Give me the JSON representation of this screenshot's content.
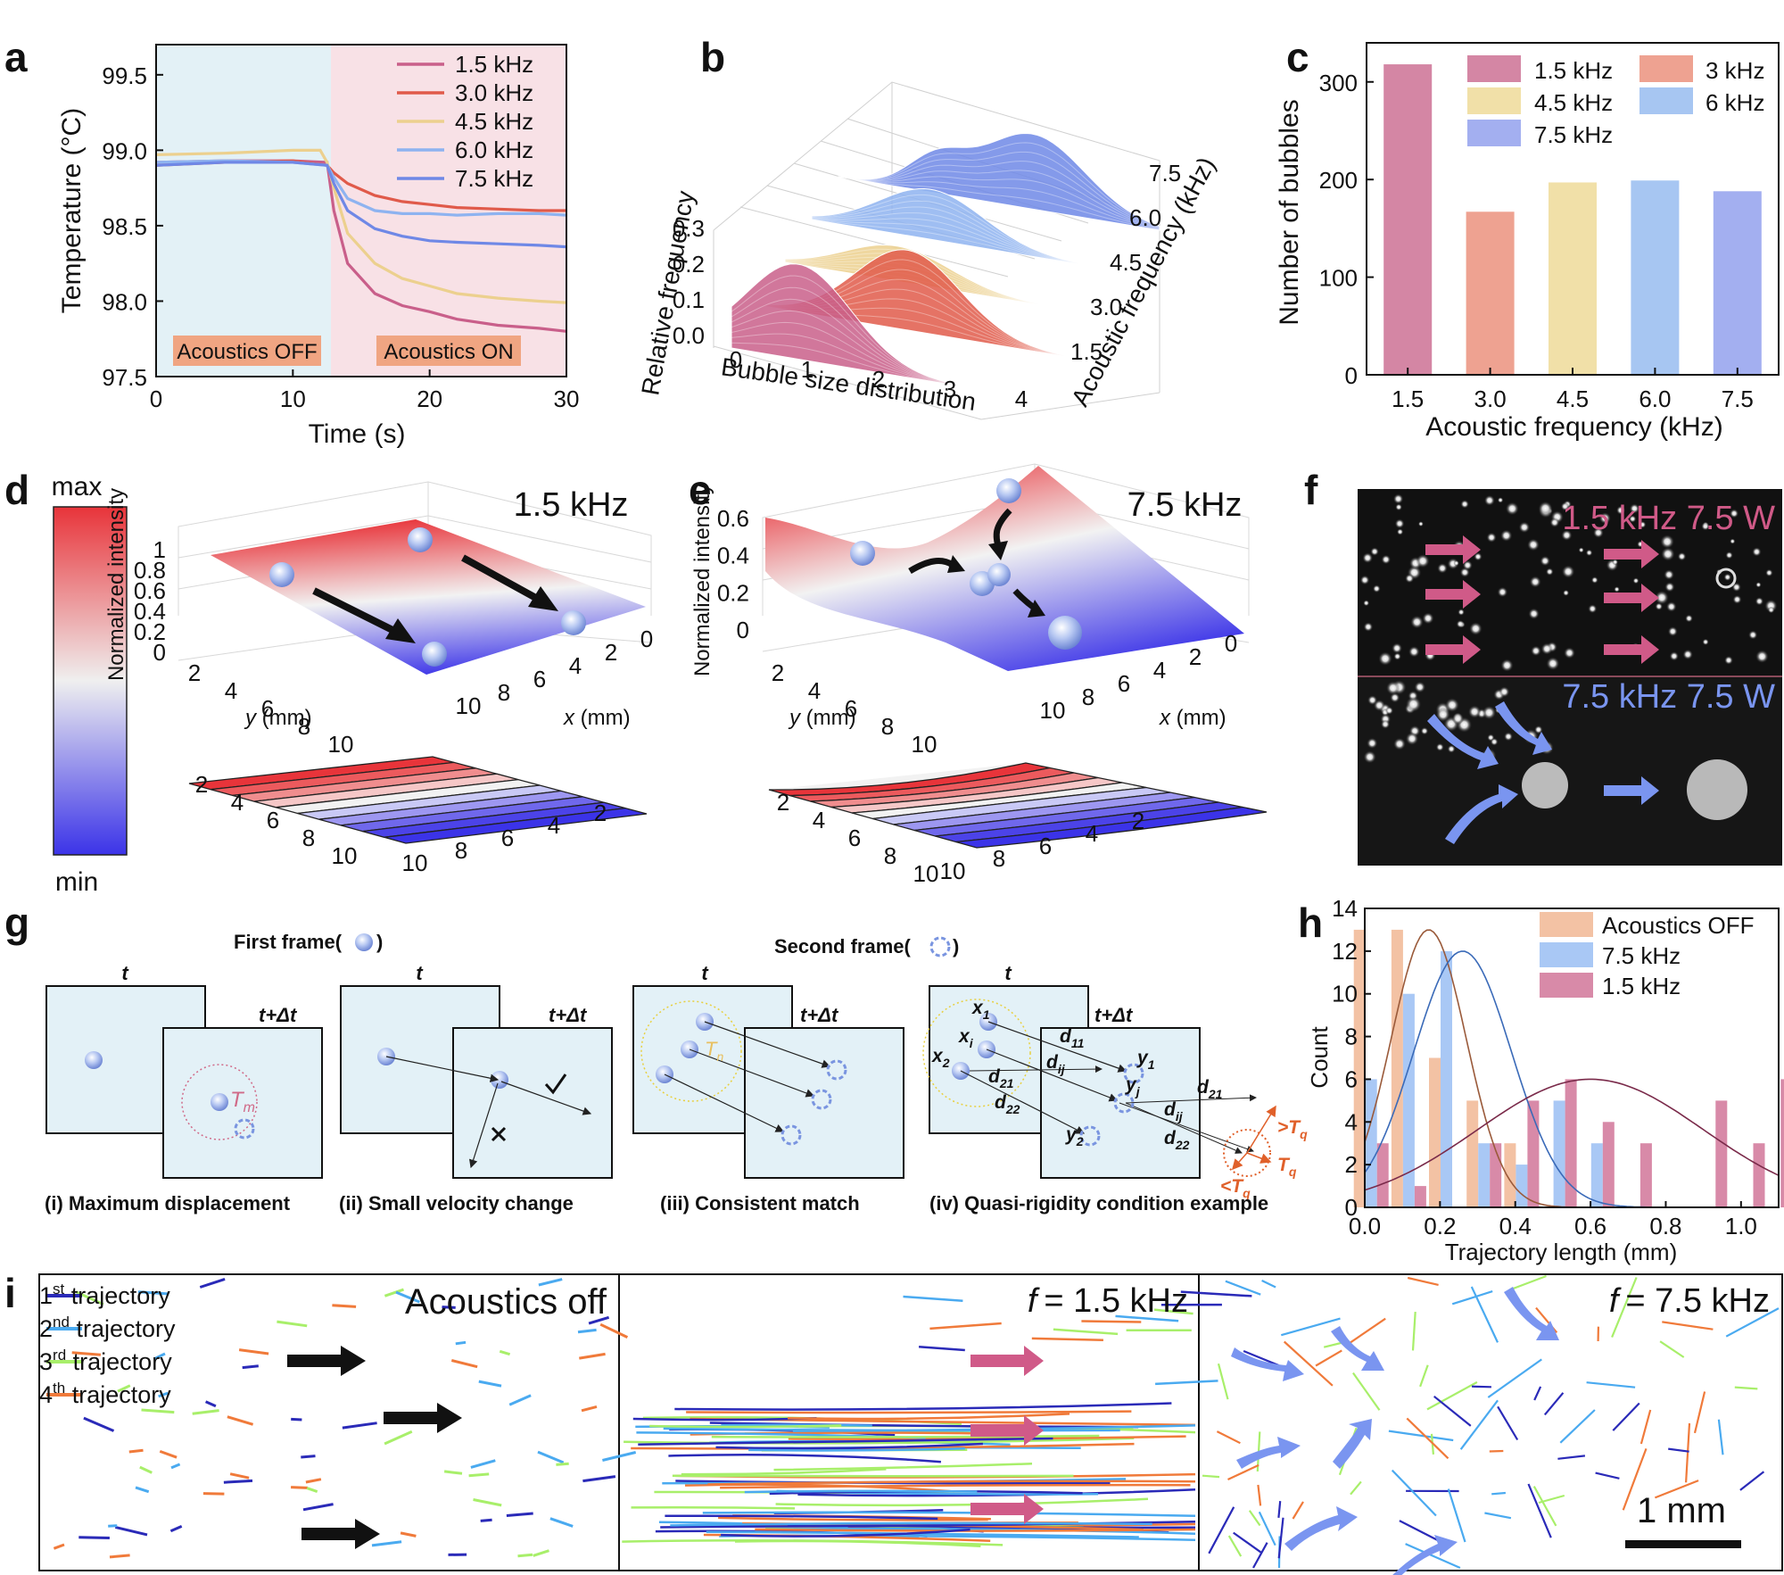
{
  "panels": {
    "a": {
      "label": "a",
      "region_off": "Acoustics OFF",
      "region_on": "Acoustics ON",
      "chart_data": {
        "type": "line",
        "xlabel": "Time (s)",
        "ylabel": "Temperature (°C)",
        "xlim": [
          0,
          30
        ],
        "ylim": [
          97.5,
          99.7
        ],
        "xticks": [
          "0",
          "10",
          "20",
          "30"
        ],
        "yticks": [
          "97.5",
          "98.0",
          "98.5",
          "99.0",
          "99.5"
        ],
        "series": [
          {
            "name": "1.5 kHz",
            "color": "#c95f8a",
            "x": [
              0,
              5,
              10,
              12.5,
              13,
              14,
              16,
              18,
              20,
              22,
              25,
              28,
              30
            ],
            "y": [
              98.92,
              98.93,
              98.93,
              98.92,
              98.6,
              98.25,
              98.05,
              97.97,
              97.93,
              97.88,
              97.84,
              97.82,
              97.8
            ]
          },
          {
            "name": "3.0 kHz",
            "color": "#e05a4a",
            "x": [
              0,
              5,
              10,
              12.5,
              13,
              14,
              16,
              18,
              20,
              22,
              25,
              28,
              30
            ],
            "y": [
              98.9,
              98.92,
              98.93,
              98.9,
              98.85,
              98.78,
              98.7,
              98.66,
              98.64,
              98.62,
              98.61,
              98.6,
              98.6
            ]
          },
          {
            "name": "4.5 kHz",
            "color": "#ecd08e",
            "x": [
              0,
              5,
              10,
              12,
              12.5,
              13,
              14,
              16,
              18,
              20,
              22,
              25,
              28,
              30
            ],
            "y": [
              98.97,
              98.98,
              99.0,
              99.0,
              98.92,
              98.75,
              98.45,
              98.25,
              98.15,
              98.1,
              98.05,
              98.02,
              98.0,
              97.99
            ]
          },
          {
            "name": "6.0 kHz",
            "color": "#8eb3f0",
            "x": [
              0,
              5,
              10,
              12.5,
              13,
              14,
              16,
              18,
              20,
              22,
              25,
              28,
              30
            ],
            "y": [
              98.92,
              98.93,
              98.92,
              98.9,
              98.82,
              98.68,
              98.6,
              98.58,
              98.58,
              98.57,
              98.58,
              98.58,
              98.57
            ]
          },
          {
            "name": "7.5 kHz",
            "color": "#6f88e6",
            "x": [
              0,
              5,
              10,
              12.5,
              13,
              14,
              16,
              18,
              20,
              22,
              25,
              28,
              30
            ],
            "y": [
              98.9,
              98.92,
              98.92,
              98.9,
              98.78,
              98.6,
              98.48,
              98.43,
              98.4,
              98.39,
              98.38,
              98.37,
              98.36
            ]
          }
        ]
      }
    },
    "b": {
      "label": "b",
      "chart_data": {
        "type": "area",
        "xlabel": "Bubble size distribution",
        "ylabel": "Relative frequency",
        "zlabel": "Acoustic frequency (kHz)",
        "xticks": [
          "0",
          "1",
          "2",
          "3",
          "4"
        ],
        "yticks": [
          "0.0",
          "0.1",
          "0.2",
          "0.3"
        ],
        "zticks": [
          "1.5",
          "3.0",
          "4.5",
          "6.0",
          "7.5"
        ],
        "series": [
          {
            "name": "1.5",
            "color": "#c95f8a",
            "peak": 0.9,
            "height": 0.19
          },
          {
            "name": "3.0",
            "color": "#e05a4a",
            "peak": 2.0,
            "height": 0.16
          },
          {
            "name": "4.5",
            "color": "#ecd08e",
            "peak": 1.5,
            "height": 0.07
          },
          {
            "name": "6.0",
            "color": "#8eb3f0",
            "peak": 1.6,
            "height": 0.1
          },
          {
            "name": "7.5",
            "color": "#6f88e6",
            "peak": 2.6,
            "height": 0.15
          }
        ]
      }
    },
    "c": {
      "label": "c",
      "legend_3": "3 kHz",
      "legend_6": "6 kHz",
      "chart_data": {
        "type": "bar",
        "categories": [
          "1.5",
          "3.0",
          "4.5",
          "6.0",
          "7.5"
        ],
        "values": [
          318,
          167,
          197,
          199,
          188
        ],
        "colors": [
          "#d486a4",
          "#eea291",
          "#f1e0a8",
          "#a7c6f2",
          "#a3aff0"
        ],
        "legend": [
          "1.5 kHz",
          "3 kHz",
          "4.5 kHz",
          "6 kHz",
          "7.5 kHz"
        ],
        "xlabel": "Acoustic frequency (kHz)",
        "ylabel": "Number of bubbles",
        "ylim": [
          0,
          340
        ],
        "yticks": [
          "0",
          "100",
          "200",
          "300"
        ]
      }
    },
    "d": {
      "label": "d",
      "title": "1.5 kHz",
      "zlabel": "Normalized intensity",
      "ylabel_var": "y",
      "ylabel_unit": " (mm)",
      "xlabel_var": "x",
      "xlabel_unit": " (mm)",
      "zticks": [
        "0",
        "0.2",
        "0.4",
        "0.6",
        "0.8",
        "1"
      ],
      "yticks": [
        "2",
        "4",
        "6",
        "8",
        "10"
      ],
      "xticks": [
        "10",
        "8",
        "6",
        "4",
        "2",
        "0"
      ],
      "contour_yticks": [
        "2",
        "4",
        "6",
        "8",
        "10"
      ],
      "contour_xticks": [
        "10",
        "8",
        "6",
        "4",
        "2"
      ]
    },
    "colorbar": {
      "max": "max",
      "min": "min"
    },
    "e": {
      "label": "e",
      "title": "7.5 kHz",
      "zlabel": "Normalized intensity",
      "ylabel_var": "y",
      "ylabel_unit": " (mm)",
      "xlabel_var": "x",
      "xlabel_unit": " (mm)",
      "zticks": [
        "0",
        "0.2",
        "0.4",
        "0.6"
      ],
      "yticks": [
        "2",
        "4",
        "6",
        "8",
        "10"
      ],
      "xticks": [
        "10",
        "8",
        "6",
        "4",
        "2",
        "0"
      ],
      "contour_yticks": [
        "2",
        "4",
        "6",
        "8",
        "10"
      ],
      "contour_xticks": [
        "10",
        "8",
        "6",
        "4",
        "2"
      ]
    },
    "f": {
      "label": "f",
      "top_caption": "1.5 kHz 7.5 W",
      "bottom_caption": "7.5 kHz 7.5 W"
    },
    "g": {
      "label": "g",
      "first_frame": "First frame(",
      "second_frame": "Second frame(",
      "paren_close": ")",
      "t": "t",
      "t_plus": "t+Δt",
      "Tm": "T",
      "Tm_sub": "m",
      "Tn": "T",
      "Tn_sub": "n",
      "captions": [
        "(i) Maximum displacement",
        "(ii) Small velocity change",
        "(iii) Consistent match",
        "(iv) Quasi-rigidity condition example"
      ],
      "iv_labels": {
        "x1": "x",
        "x1s": "1",
        "xi": "x",
        "xis": "i",
        "x2": "x",
        "x2s": "2",
        "y1": "y",
        "y1s": "1",
        "yj": "y",
        "yjs": "j",
        "y2": "y",
        "y2s": "2",
        "d11": "d",
        "d11s": "11",
        "dij": "d",
        "dijs": "ij",
        "d21": "d",
        "d21s": "21",
        "d22": "d",
        "d22s": "22",
        "gtTq": ">T",
        "gtTqs": "q",
        "Tq": "T",
        "Tqs": "q",
        "ltTq": "<T",
        "ltTqs": "q"
      }
    },
    "h": {
      "label": "h",
      "chart_data": {
        "type": "bar",
        "xlabel": "Trajectory length (mm)",
        "ylabel": "Count",
        "xlim": [
          0,
          1.1
        ],
        "ylim": [
          0,
          14
        ],
        "xticks": [
          "0.0",
          "0.2",
          "0.4",
          "0.6",
          "0.8",
          "1.0"
        ],
        "yticks": [
          "0",
          "2",
          "4",
          "6",
          "8",
          "10",
          "12",
          "14"
        ],
        "bin_centers": [
          0.017,
          0.117,
          0.217,
          0.317,
          0.417,
          0.517,
          0.617,
          0.717,
          0.817,
          0.917,
          1.017,
          1.09
        ],
        "series": [
          {
            "name": "Acoustics OFF",
            "color": "#f3c2a4",
            "values": [
              13,
              13,
              7,
              5,
              3,
              0,
              0,
              0,
              0,
              0,
              0,
              0
            ],
            "fit_mean": 0.17,
            "fit_sd": 0.1,
            "fit_peak": 13,
            "fit_color": "#9a5a3a"
          },
          {
            "name": "7.5 kHz",
            "color": "#a9c8f5",
            "values": [
              6,
              10,
              12,
              3,
              2,
              5,
              3,
              0,
              0,
              0,
              0,
              0
            ],
            "fit_mean": 0.26,
            "fit_sd": 0.13,
            "fit_peak": 12,
            "fit_color": "#3a6ab8"
          },
          {
            "name": "1.5 kHz",
            "color": "#d88aa8",
            "values": [
              3,
              1,
              0,
              3,
              5,
              6,
              4,
              3,
              0,
              5,
              3,
              6
            ],
            "fit_mean": 0.6,
            "fit_sd": 0.3,
            "fit_peak": 6,
            "fit_color": "#7a2a4a"
          }
        ]
      }
    },
    "i": {
      "label": "i",
      "legend": [
        {
          "num": "1",
          "sup": "st",
          "text": " trajectory",
          "color": "#2a2ab8"
        },
        {
          "num": "2",
          "sup": "nd",
          "text": " trajectory",
          "color": "#4aaaf0"
        },
        {
          "num": "3",
          "sup": "rd",
          "text": " trajectory",
          "color": "#a8ef6a"
        },
        {
          "num": "4",
          "sup": "th",
          "text": " trajectory",
          "color": "#f07a3a"
        }
      ],
      "titles": [
        "Acoustics off",
        "= 1.5 kHz",
        "= 7.5 kHz"
      ],
      "f_var": "f",
      "scale": "1 mm"
    }
  }
}
